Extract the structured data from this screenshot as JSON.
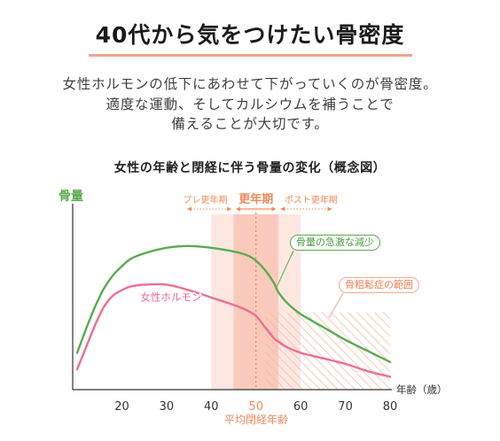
{
  "header": {
    "title": "40代から気をつけたい骨密度"
  },
  "intro": {
    "lines": [
      "女性ホルモンの低下にあわせて下がっていくのが骨密度。",
      "適度な運動、そしてカルシウムを補うことで",
      "備えることが大切です。"
    ]
  },
  "colors": {
    "title_underline": "#f4a58a",
    "accent": "#ef8a5c",
    "band_light": "#fde8e1",
    "band_dark": "#f9cabb",
    "hatch": "#f3b49f",
    "axis": "#333333",
    "tick_text": "#333333"
  },
  "chart_data": {
    "type": "line",
    "title": "女性の年齢と閉経に伴う骨量の変化（概念図）",
    "ylabel": "骨量",
    "xlabel": "年齢（歳）",
    "xlim": [
      9,
      80
    ],
    "ylim": [
      0,
      100
    ],
    "x_ticks": [
      20,
      30,
      40,
      50,
      60,
      70,
      80
    ],
    "grid": false,
    "x": [
      10,
      12,
      14,
      16,
      18,
      20,
      22,
      25,
      30,
      35,
      40,
      45,
      48,
      50,
      52,
      54,
      55,
      57,
      60,
      65,
      70,
      75,
      80
    ],
    "series": [
      {
        "color": "#5aab4f",
        "values": [
          20,
          33,
          45,
          55,
          62,
          67,
          71,
          74,
          77,
          78,
          77,
          75,
          73,
          70,
          65,
          58,
          53,
          47,
          41,
          34,
          27,
          21,
          15
        ]
      },
      {
        "name": "女性ホルモン",
        "color": "#ec6f8f",
        "values": [
          11,
          23,
          35,
          45,
          51,
          54,
          56,
          57,
          57,
          54,
          50,
          46,
          43,
          40,
          34,
          28,
          26,
          23,
          20,
          17,
          14,
          10,
          7
        ]
      }
    ],
    "periods": [
      {
        "label": "プレ更年期",
        "range": [
          40,
          45
        ]
      },
      {
        "label": "更年期",
        "range": [
          45,
          55
        ],
        "highlight": true
      },
      {
        "label": "ポスト更年期",
        "range": [
          55,
          60
        ]
      }
    ],
    "menopause": {
      "age": 50,
      "label": "平均閉経年齢"
    },
    "osteoporosis_range": {
      "label": "骨粗鬆症の範囲",
      "x": [
        52,
        80
      ],
      "y": [
        0,
        42
      ]
    },
    "annotations": [
      {
        "text": "骨量の急激な減少",
        "x": 54.5
      }
    ]
  }
}
